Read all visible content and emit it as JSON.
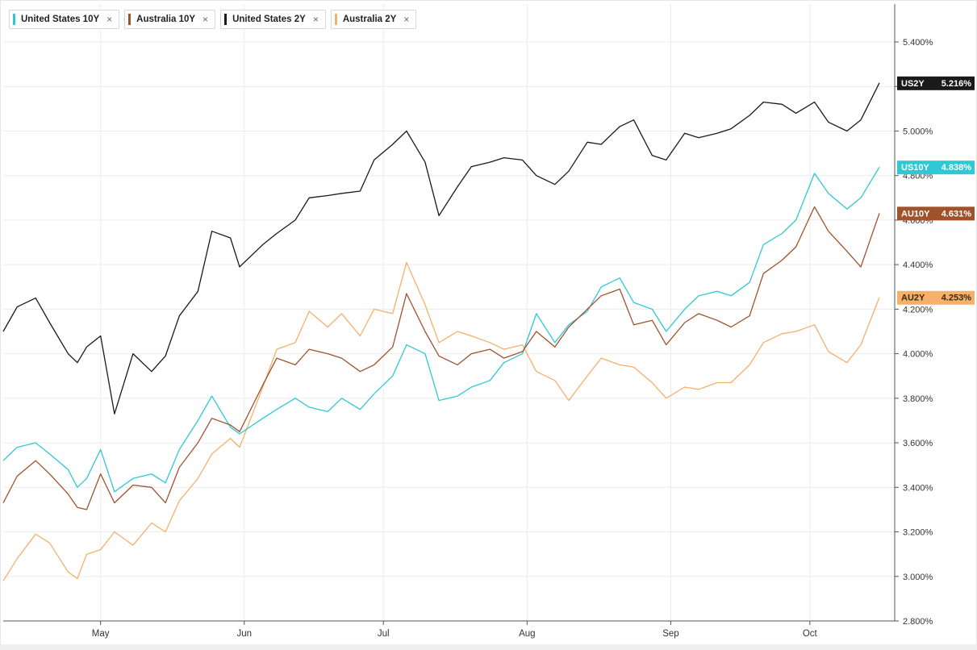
{
  "legend": [
    {
      "label": "United States 10Y",
      "color": "#2ec8d6",
      "close_icon": "close-icon"
    },
    {
      "label": "Australia 10Y",
      "color": "#a0522d",
      "close_icon": "close-icon"
    },
    {
      "label": "United States 2Y",
      "color": "#1a1a1a",
      "close_icon": "close-icon"
    },
    {
      "label": "Australia 2Y",
      "color": "#f5b06a",
      "close_icon": "close-icon"
    }
  ],
  "close_symbol": "×",
  "chart_data": {
    "type": "line",
    "x_start": "2023-04-10",
    "x_end": "2023-10-16",
    "x_ticks": [
      {
        "label": "May",
        "date": "2023-05-01"
      },
      {
        "label": "Jun",
        "date": "2023-06-01"
      },
      {
        "label": "Jul",
        "date": "2023-07-01"
      },
      {
        "label": "Aug",
        "date": "2023-08-01"
      },
      {
        "label": "Sep",
        "date": "2023-09-01"
      },
      {
        "label": "Oct",
        "date": "2023-10-01"
      }
    ],
    "ylim": [
      2.8,
      5.6
    ],
    "y_ticks": [
      "2.800%",
      "3.000%",
      "3.200%",
      "3.400%",
      "3.600%",
      "3.800%",
      "4.000%",
      "4.200%",
      "4.400%",
      "4.600%",
      "4.800%",
      "5.000%",
      "5.200%",
      "5.400%"
    ],
    "y_tick_values": [
      2.8,
      3.0,
      3.2,
      3.4,
      3.6,
      3.8,
      4.0,
      4.2,
      4.4,
      4.6,
      4.8,
      5.0,
      5.2,
      5.4
    ],
    "grid": true,
    "series": [
      {
        "name": "United States 10Y",
        "tag": "US10Y",
        "last_label": "4.838%",
        "last": 4.838,
        "color": "#2ec8d6",
        "points": [
          [
            "2023-04-10",
            3.52
          ],
          [
            "2023-04-13",
            3.58
          ],
          [
            "2023-04-17",
            3.6
          ],
          [
            "2023-04-20",
            3.55
          ],
          [
            "2023-04-24",
            3.48
          ],
          [
            "2023-04-26",
            3.4
          ],
          [
            "2023-04-28",
            3.44
          ],
          [
            "2023-05-01",
            3.57
          ],
          [
            "2023-05-04",
            3.38
          ],
          [
            "2023-05-08",
            3.44
          ],
          [
            "2023-05-12",
            3.46
          ],
          [
            "2023-05-15",
            3.42
          ],
          [
            "2023-05-18",
            3.57
          ],
          [
            "2023-05-22",
            3.7
          ],
          [
            "2023-05-25",
            3.81
          ],
          [
            "2023-05-29",
            3.67
          ],
          [
            "2023-05-31",
            3.64
          ],
          [
            "2023-06-05",
            3.71
          ],
          [
            "2023-06-08",
            3.75
          ],
          [
            "2023-06-12",
            3.8
          ],
          [
            "2023-06-15",
            3.76
          ],
          [
            "2023-06-19",
            3.74
          ],
          [
            "2023-06-22",
            3.8
          ],
          [
            "2023-06-26",
            3.75
          ],
          [
            "2023-06-29",
            3.82
          ],
          [
            "2023-07-03",
            3.9
          ],
          [
            "2023-07-06",
            4.04
          ],
          [
            "2023-07-10",
            4.0
          ],
          [
            "2023-07-13",
            3.79
          ],
          [
            "2023-07-17",
            3.81
          ],
          [
            "2023-07-20",
            3.85
          ],
          [
            "2023-07-24",
            3.88
          ],
          [
            "2023-07-27",
            3.96
          ],
          [
            "2023-07-31",
            4.0
          ],
          [
            "2023-08-03",
            4.18
          ],
          [
            "2023-08-07",
            4.05
          ],
          [
            "2023-08-10",
            4.13
          ],
          [
            "2023-08-14",
            4.19
          ],
          [
            "2023-08-17",
            4.3
          ],
          [
            "2023-08-21",
            4.34
          ],
          [
            "2023-08-24",
            4.23
          ],
          [
            "2023-08-28",
            4.2
          ],
          [
            "2023-08-31",
            4.1
          ],
          [
            "2023-09-04",
            4.2
          ],
          [
            "2023-09-07",
            4.26
          ],
          [
            "2023-09-11",
            4.28
          ],
          [
            "2023-09-14",
            4.26
          ],
          [
            "2023-09-18",
            4.32
          ],
          [
            "2023-09-21",
            4.49
          ],
          [
            "2023-09-25",
            4.54
          ],
          [
            "2023-09-28",
            4.6
          ],
          [
            "2023-10-02",
            4.81
          ],
          [
            "2023-10-05",
            4.72
          ],
          [
            "2023-10-09",
            4.65
          ],
          [
            "2023-10-12",
            4.7
          ],
          [
            "2023-10-16",
            4.838
          ]
        ]
      },
      {
        "name": "Australia 10Y",
        "tag": "AU10Y",
        "last_label": "4.631%",
        "last": 4.631,
        "color": "#a0522d",
        "points": [
          [
            "2023-04-10",
            3.33
          ],
          [
            "2023-04-13",
            3.45
          ],
          [
            "2023-04-17",
            3.52
          ],
          [
            "2023-04-20",
            3.46
          ],
          [
            "2023-04-24",
            3.37
          ],
          [
            "2023-04-26",
            3.31
          ],
          [
            "2023-04-28",
            3.3
          ],
          [
            "2023-05-01",
            3.46
          ],
          [
            "2023-05-04",
            3.33
          ],
          [
            "2023-05-08",
            3.41
          ],
          [
            "2023-05-12",
            3.4
          ],
          [
            "2023-05-15",
            3.33
          ],
          [
            "2023-05-18",
            3.49
          ],
          [
            "2023-05-22",
            3.6
          ],
          [
            "2023-05-25",
            3.71
          ],
          [
            "2023-05-29",
            3.68
          ],
          [
            "2023-05-31",
            3.65
          ],
          [
            "2023-06-05",
            3.86
          ],
          [
            "2023-06-08",
            3.98
          ],
          [
            "2023-06-12",
            3.95
          ],
          [
            "2023-06-15",
            4.02
          ],
          [
            "2023-06-19",
            4.0
          ],
          [
            "2023-06-22",
            3.98
          ],
          [
            "2023-06-26",
            3.92
          ],
          [
            "2023-06-29",
            3.95
          ],
          [
            "2023-07-03",
            4.03
          ],
          [
            "2023-07-06",
            4.27
          ],
          [
            "2023-07-10",
            4.1
          ],
          [
            "2023-07-13",
            3.99
          ],
          [
            "2023-07-17",
            3.95
          ],
          [
            "2023-07-20",
            4.0
          ],
          [
            "2023-07-24",
            4.02
          ],
          [
            "2023-07-27",
            3.98
          ],
          [
            "2023-07-31",
            4.01
          ],
          [
            "2023-08-03",
            4.1
          ],
          [
            "2023-08-07",
            4.03
          ],
          [
            "2023-08-10",
            4.12
          ],
          [
            "2023-08-14",
            4.2
          ],
          [
            "2023-08-17",
            4.26
          ],
          [
            "2023-08-21",
            4.29
          ],
          [
            "2023-08-24",
            4.13
          ],
          [
            "2023-08-28",
            4.15
          ],
          [
            "2023-08-31",
            4.04
          ],
          [
            "2023-09-04",
            4.14
          ],
          [
            "2023-09-07",
            4.18
          ],
          [
            "2023-09-11",
            4.15
          ],
          [
            "2023-09-14",
            4.12
          ],
          [
            "2023-09-18",
            4.17
          ],
          [
            "2023-09-21",
            4.36
          ],
          [
            "2023-09-25",
            4.42
          ],
          [
            "2023-09-28",
            4.48
          ],
          [
            "2023-10-02",
            4.66
          ],
          [
            "2023-10-05",
            4.55
          ],
          [
            "2023-10-09",
            4.46
          ],
          [
            "2023-10-12",
            4.39
          ],
          [
            "2023-10-16",
            4.631
          ]
        ]
      },
      {
        "name": "United States 2Y",
        "tag": "US2Y",
        "last_label": "5.216%",
        "last": 5.216,
        "color": "#1a1a1a",
        "points": [
          [
            "2023-04-10",
            4.1
          ],
          [
            "2023-04-13",
            4.21
          ],
          [
            "2023-04-17",
            4.25
          ],
          [
            "2023-04-20",
            4.14
          ],
          [
            "2023-04-24",
            4.0
          ],
          [
            "2023-04-26",
            3.96
          ],
          [
            "2023-04-28",
            4.03
          ],
          [
            "2023-05-01",
            4.08
          ],
          [
            "2023-05-04",
            3.73
          ],
          [
            "2023-05-08",
            4.0
          ],
          [
            "2023-05-12",
            3.92
          ],
          [
            "2023-05-15",
            3.99
          ],
          [
            "2023-05-18",
            4.17
          ],
          [
            "2023-05-22",
            4.28
          ],
          [
            "2023-05-25",
            4.55
          ],
          [
            "2023-05-29",
            4.52
          ],
          [
            "2023-05-31",
            4.39
          ],
          [
            "2023-06-05",
            4.49
          ],
          [
            "2023-06-08",
            4.54
          ],
          [
            "2023-06-12",
            4.6
          ],
          [
            "2023-06-15",
            4.7
          ],
          [
            "2023-06-19",
            4.71
          ],
          [
            "2023-06-22",
            4.72
          ],
          [
            "2023-06-26",
            4.73
          ],
          [
            "2023-06-29",
            4.87
          ],
          [
            "2023-07-03",
            4.94
          ],
          [
            "2023-07-06",
            5.0
          ],
          [
            "2023-07-10",
            4.86
          ],
          [
            "2023-07-13",
            4.62
          ],
          [
            "2023-07-17",
            4.75
          ],
          [
            "2023-07-20",
            4.84
          ],
          [
            "2023-07-24",
            4.86
          ],
          [
            "2023-07-27",
            4.88
          ],
          [
            "2023-07-31",
            4.87
          ],
          [
            "2023-08-03",
            4.8
          ],
          [
            "2023-08-07",
            4.76
          ],
          [
            "2023-08-10",
            4.82
          ],
          [
            "2023-08-14",
            4.95
          ],
          [
            "2023-08-17",
            4.94
          ],
          [
            "2023-08-21",
            5.02
          ],
          [
            "2023-08-24",
            5.05
          ],
          [
            "2023-08-28",
            4.89
          ],
          [
            "2023-08-31",
            4.87
          ],
          [
            "2023-09-04",
            4.99
          ],
          [
            "2023-09-07",
            4.97
          ],
          [
            "2023-09-11",
            4.99
          ],
          [
            "2023-09-14",
            5.01
          ],
          [
            "2023-09-18",
            5.07
          ],
          [
            "2023-09-21",
            5.13
          ],
          [
            "2023-09-25",
            5.12
          ],
          [
            "2023-09-28",
            5.08
          ],
          [
            "2023-10-02",
            5.13
          ],
          [
            "2023-10-05",
            5.04
          ],
          [
            "2023-10-09",
            5.0
          ],
          [
            "2023-10-12",
            5.05
          ],
          [
            "2023-10-16",
            5.216
          ]
        ]
      },
      {
        "name": "Australia 2Y",
        "tag": "AU2Y",
        "last_label": "4.253%",
        "last": 4.253,
        "color": "#f5b06a",
        "points": [
          [
            "2023-04-10",
            2.98
          ],
          [
            "2023-04-13",
            3.08
          ],
          [
            "2023-04-17",
            3.19
          ],
          [
            "2023-04-20",
            3.15
          ],
          [
            "2023-04-24",
            3.02
          ],
          [
            "2023-04-26",
            2.99
          ],
          [
            "2023-04-28",
            3.1
          ],
          [
            "2023-05-01",
            3.12
          ],
          [
            "2023-05-04",
            3.2
          ],
          [
            "2023-05-08",
            3.14
          ],
          [
            "2023-05-12",
            3.24
          ],
          [
            "2023-05-15",
            3.2
          ],
          [
            "2023-05-18",
            3.34
          ],
          [
            "2023-05-22",
            3.44
          ],
          [
            "2023-05-25",
            3.55
          ],
          [
            "2023-05-29",
            3.62
          ],
          [
            "2023-05-31",
            3.58
          ],
          [
            "2023-06-05",
            3.85
          ],
          [
            "2023-06-08",
            4.02
          ],
          [
            "2023-06-12",
            4.05
          ],
          [
            "2023-06-15",
            4.19
          ],
          [
            "2023-06-19",
            4.12
          ],
          [
            "2023-06-22",
            4.18
          ],
          [
            "2023-06-26",
            4.08
          ],
          [
            "2023-06-29",
            4.2
          ],
          [
            "2023-07-03",
            4.18
          ],
          [
            "2023-07-06",
            4.41
          ],
          [
            "2023-07-10",
            4.22
          ],
          [
            "2023-07-13",
            4.05
          ],
          [
            "2023-07-17",
            4.1
          ],
          [
            "2023-07-20",
            4.08
          ],
          [
            "2023-07-24",
            4.05
          ],
          [
            "2023-07-27",
            4.02
          ],
          [
            "2023-07-31",
            4.04
          ],
          [
            "2023-08-03",
            3.92
          ],
          [
            "2023-08-07",
            3.88
          ],
          [
            "2023-08-10",
            3.79
          ],
          [
            "2023-08-14",
            3.9
          ],
          [
            "2023-08-17",
            3.98
          ],
          [
            "2023-08-21",
            3.95
          ],
          [
            "2023-08-24",
            3.94
          ],
          [
            "2023-08-28",
            3.87
          ],
          [
            "2023-08-31",
            3.8
          ],
          [
            "2023-09-04",
            3.85
          ],
          [
            "2023-09-07",
            3.84
          ],
          [
            "2023-09-11",
            3.87
          ],
          [
            "2023-09-14",
            3.87
          ],
          [
            "2023-09-18",
            3.95
          ],
          [
            "2023-09-21",
            4.05
          ],
          [
            "2023-09-25",
            4.09
          ],
          [
            "2023-09-28",
            4.1
          ],
          [
            "2023-10-02",
            4.13
          ],
          [
            "2023-10-05",
            4.01
          ],
          [
            "2023-10-09",
            3.96
          ],
          [
            "2023-10-12",
            4.04
          ],
          [
            "2023-10-16",
            4.253
          ]
        ]
      }
    ]
  }
}
